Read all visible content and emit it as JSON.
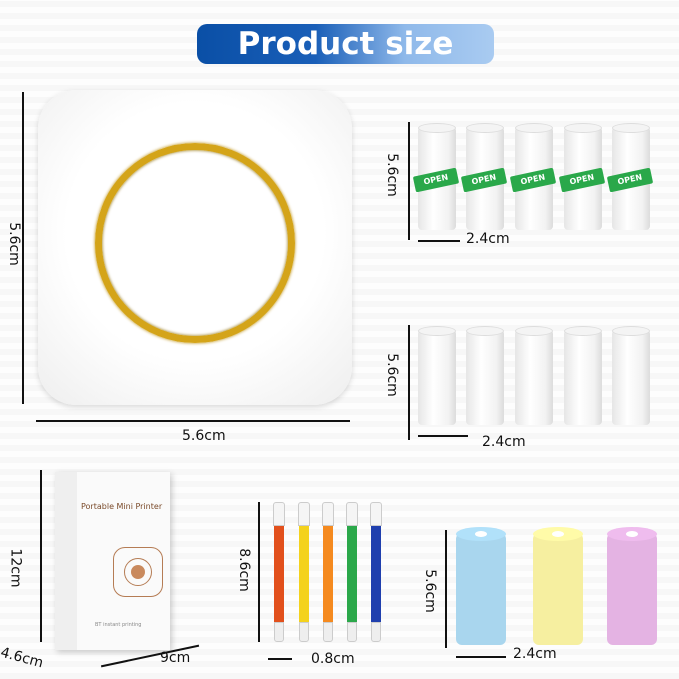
{
  "title": "Product size",
  "printer": {
    "height": "5.6cm",
    "width": "5.6cm",
    "ring_color": "#d4a419"
  },
  "paper_rolls_with_labels": {
    "height": "5.6cm",
    "width": "2.4cm",
    "count": 5,
    "label": "OPEN",
    "label_color": "#2aa84a"
  },
  "paper_rolls_plain": {
    "height": "5.6cm",
    "width": "2.4cm",
    "count": 5
  },
  "box": {
    "height": "12cm",
    "depth": "4.6cm",
    "width": "9cm",
    "brand_text": "Portable Mini Printer",
    "bottom_text": "BT instant printing"
  },
  "pens": {
    "length": "8.6cm",
    "width": "0.8cm",
    "colors": [
      "#e2501c",
      "#f4d21c",
      "#f58a1f",
      "#2ba84a",
      "#1f3fae"
    ]
  },
  "color_rolls": {
    "height": "5.6cm",
    "width": "2.4cm",
    "colors": [
      "#a9d6ee",
      "#f6efa0",
      "#e4b3e3"
    ]
  }
}
